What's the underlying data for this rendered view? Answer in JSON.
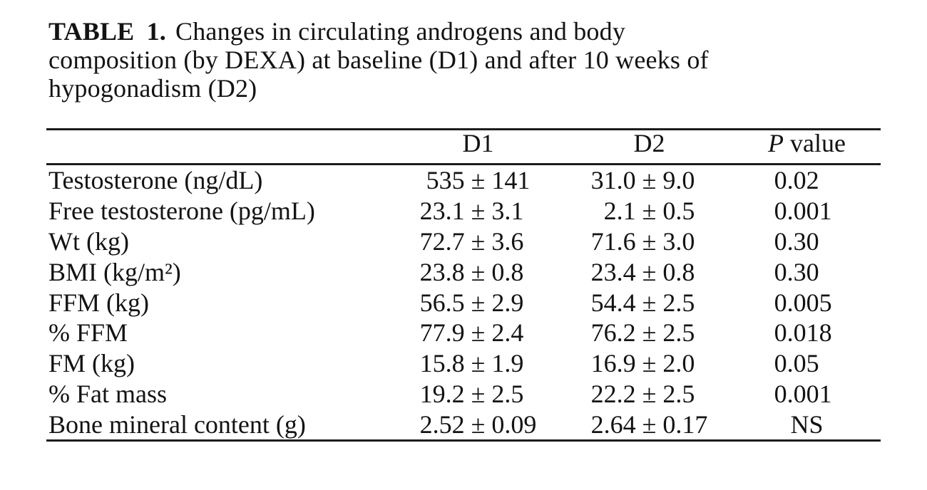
{
  "caption": {
    "label": "TABLE 1.",
    "line1": "Changes in circulating androgens and body",
    "line2": "composition (by DEXA) at baseline (D1) and after 10 weeks of",
    "line3": "hypogonadism (D2)"
  },
  "table": {
    "pm": "±",
    "columns": {
      "label": "",
      "d1": "D1",
      "d2": "D2",
      "p_italic": "P",
      "p_rest": "value"
    },
    "rows": [
      {
        "label": "Testosterone (ng/dL)",
        "d1m": "535",
        "d1s": "141",
        "d2m": "31.0",
        "d2s": "9.0",
        "p": "0.02"
      },
      {
        "label": "Free testosterone (pg/mL)",
        "d1m": "23.1",
        "d1s": "3.1",
        "d2m": "2.1",
        "d2s": "0.5",
        "p": "0.001"
      },
      {
        "label": "Wt (kg)",
        "d1m": "72.7",
        "d1s": "3.6",
        "d2m": "71.6",
        "d2s": "3.0",
        "p": "0.30"
      },
      {
        "label": "BMI (kg/m²)",
        "d1m": "23.8",
        "d1s": "0.8",
        "d2m": "23.4",
        "d2s": "0.8",
        "p": "0.30"
      },
      {
        "label": "FFM (kg)",
        "d1m": "56.5",
        "d1s": "2.9",
        "d2m": "54.4",
        "d2s": "2.5",
        "p": "0.005"
      },
      {
        "label": "% FFM",
        "d1m": "77.9",
        "d1s": "2.4",
        "d2m": "76.2",
        "d2s": "2.5",
        "p": "0.018"
      },
      {
        "label": "FM (kg)",
        "d1m": "15.8",
        "d1s": "1.9",
        "d2m": "16.9",
        "d2s": "2.0",
        "p": "0.05"
      },
      {
        "label": "% Fat mass",
        "d1m": "19.2",
        "d1s": "2.5",
        "d2m": "22.2",
        "d2s": "2.5",
        "p": "0.001"
      },
      {
        "label": "Bone mineral content (g)",
        "d1m": "2.52",
        "d1s": "0.09",
        "d2m": "2.64",
        "d2s": "0.17",
        "p": "NS"
      }
    ]
  },
  "colors": {
    "background": "#ffffff",
    "text": "#131313",
    "rule": "#1c1c1c"
  }
}
